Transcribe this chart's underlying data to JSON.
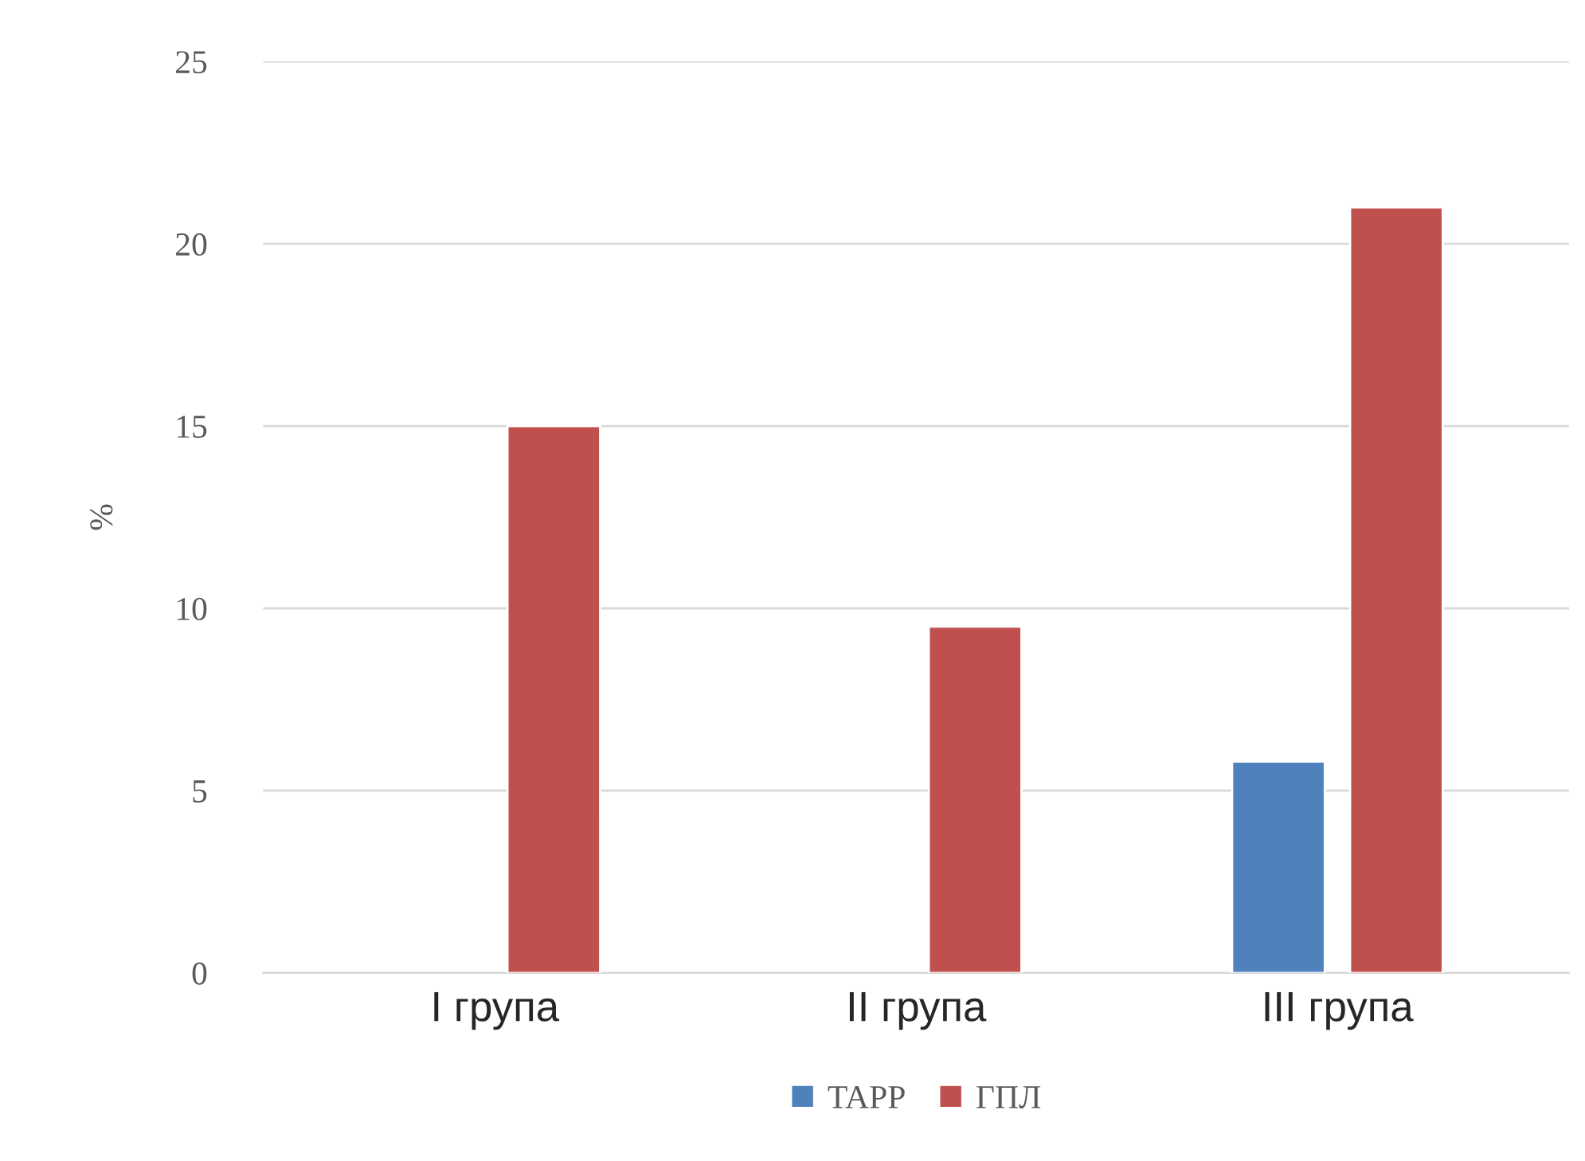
{
  "chart_data": {
    "type": "bar",
    "ylabel": "%",
    "categories": [
      "I група",
      "II група",
      "III група"
    ],
    "series": [
      {
        "name": "TAPP",
        "color": "#4f81bd",
        "values": [
          null,
          null,
          5.8
        ]
      },
      {
        "name": "ГПЛ",
        "color": "#c0504d",
        "values": [
          15,
          9.5,
          21
        ]
      }
    ],
    "ylim": [
      0,
      25
    ],
    "yticks": [
      0,
      5,
      10,
      15,
      20,
      25
    ],
    "grid": "y",
    "legend": "bottom"
  }
}
